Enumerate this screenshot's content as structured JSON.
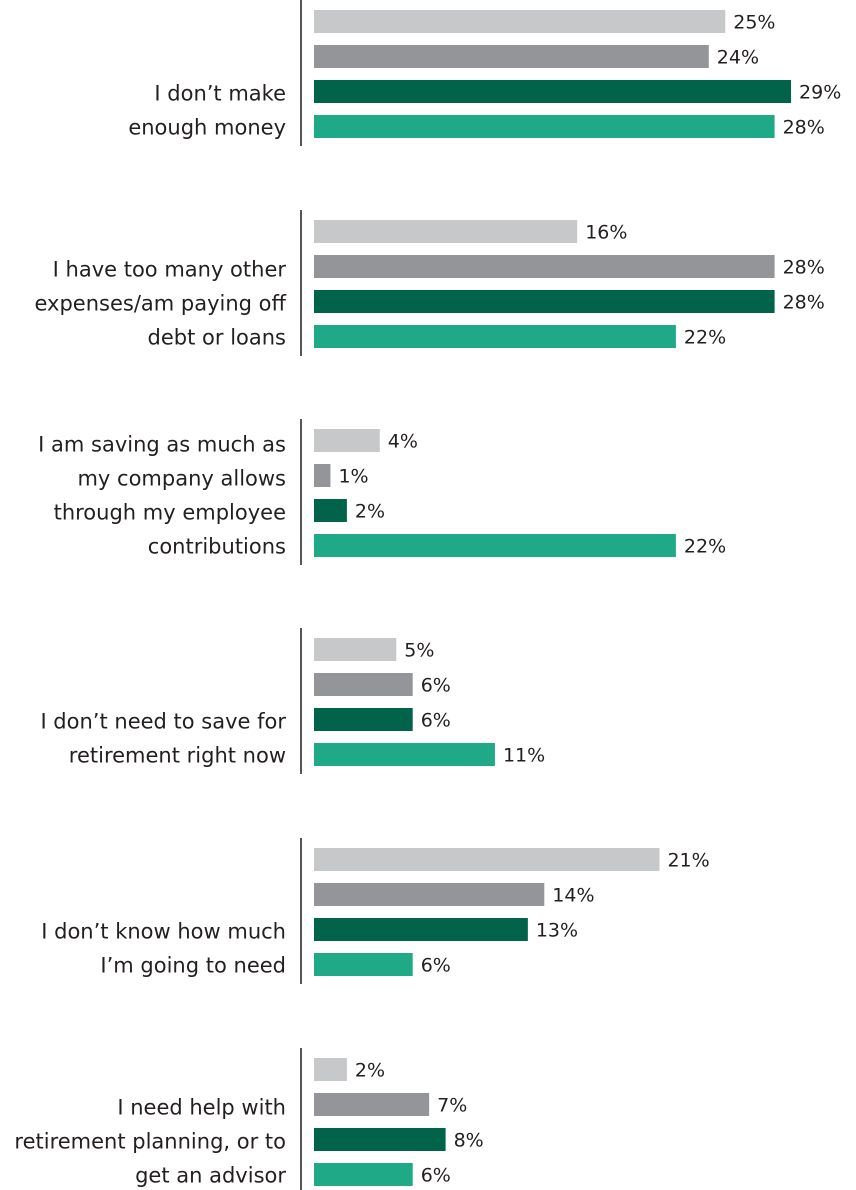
{
  "chart_data": {
    "type": "bar",
    "orientation": "horizontal",
    "value_suffix": "%",
    "xlim": [
      0,
      29
    ],
    "grid": false,
    "legend": "none",
    "categories": [
      [
        "I don’t make",
        "enough money"
      ],
      [
        "I have too many other",
        "expenses/am paying off",
        "debt or loans"
      ],
      [
        "I am saving as much as",
        "my company allows",
        "through my employee",
        "contributions"
      ],
      [
        "I don’t need to save for",
        "retirement right now"
      ],
      [
        "I don’t know how much",
        "I’m going to need"
      ],
      [
        "I need help with",
        "retirement planning, or to",
        "get an advisor"
      ]
    ],
    "series": [
      {
        "color": "#c7c8ca",
        "values": [
          25,
          16,
          4,
          5,
          21,
          2
        ]
      },
      {
        "color": "#939598",
        "values": [
          24,
          28,
          1,
          6,
          14,
          7
        ]
      },
      {
        "color": "#00634a",
        "values": [
          29,
          28,
          2,
          6,
          13,
          8
        ]
      },
      {
        "color": "#20a987",
        "values": [
          28,
          22,
          22,
          11,
          6,
          6
        ]
      }
    ]
  }
}
